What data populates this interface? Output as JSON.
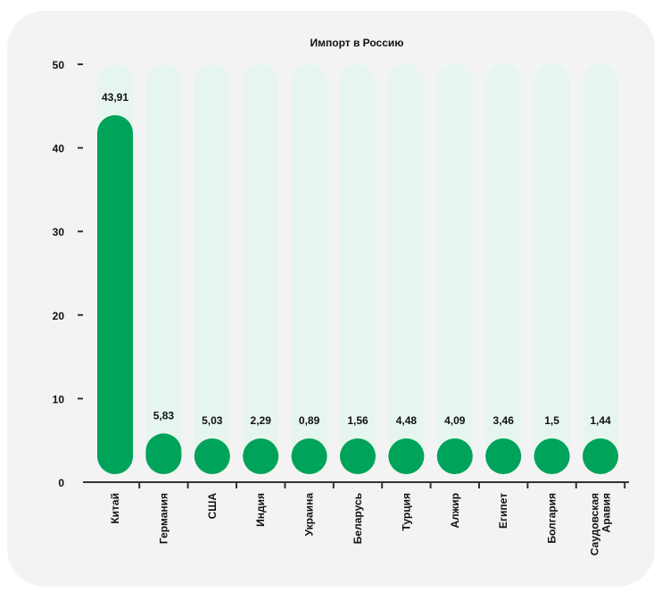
{
  "chart_data": {
    "type": "bar",
    "title": "Импорт в Россию",
    "xlabel": "",
    "ylabel": "",
    "categories": [
      "Китай",
      "Германия",
      "США",
      "Индия",
      "Украина",
      "Беларусь",
      "Турция",
      "Алжир",
      "Египет",
      "Болгария",
      "Саудовская Аравия"
    ],
    "values": [
      43.91,
      5.83,
      5.03,
      2.29,
      0.89,
      1.56,
      4.48,
      4.09,
      3.46,
      1.5,
      1.44
    ],
    "value_labels": [
      "43,91",
      "5,83",
      "5,03",
      "2,29",
      "0,89",
      "1,56",
      "4,48",
      "4,09",
      "3,46",
      "1,5",
      "1,44"
    ],
    "ylim": [
      0,
      50
    ],
    "yticks": [
      0,
      10,
      20,
      30,
      40,
      50
    ],
    "grid": false,
    "colors": {
      "bar": "#00a35a",
      "track": "#e6f6ee",
      "axis": "#333333",
      "text": "#111111",
      "card": "#f3f3f3"
    }
  }
}
